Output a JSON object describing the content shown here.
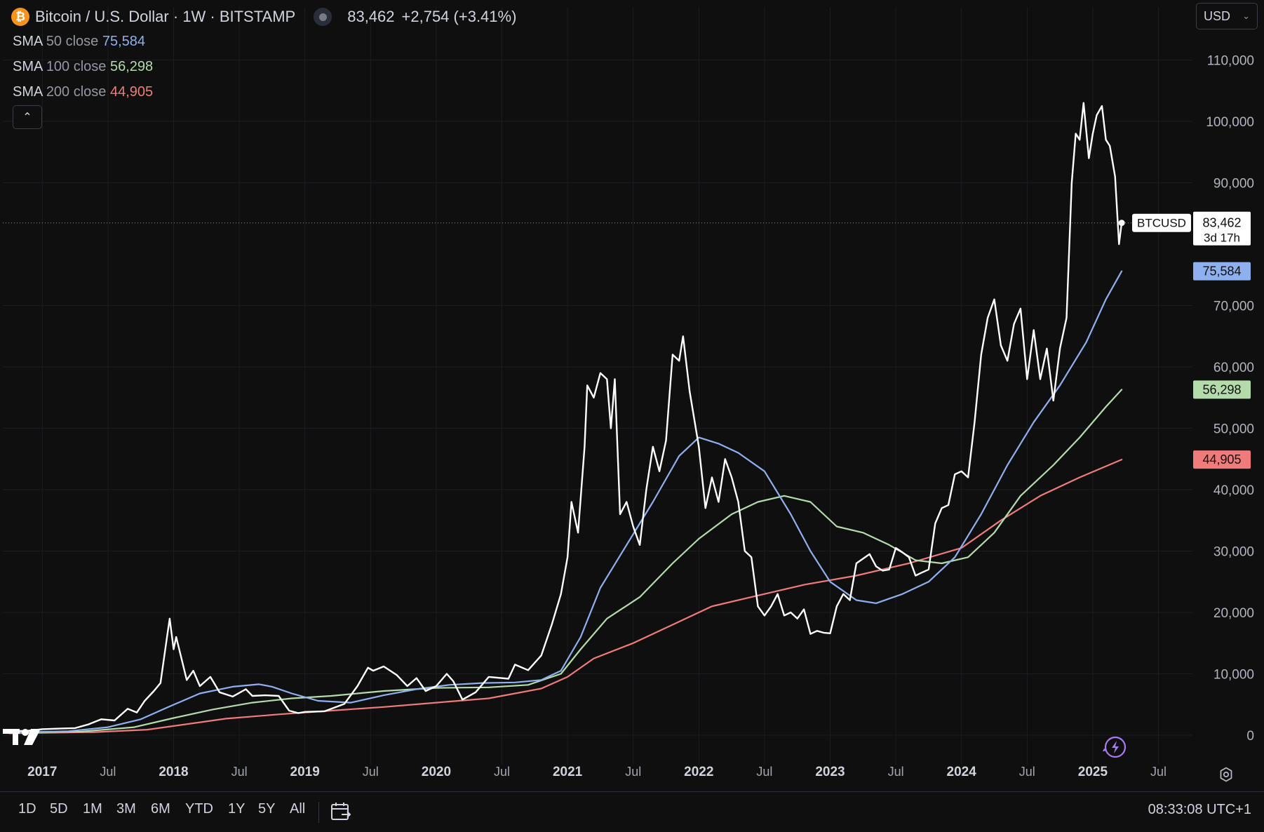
{
  "header": {
    "icon_glyph": "₿",
    "title": "Bitcoin / U.S. Dollar · 1W · BITSTAMP",
    "price": "83,462",
    "change": "+2,754 (+3.41%)"
  },
  "legend": [
    {
      "name": "SMA",
      "params": "50 close",
      "value": "75,584",
      "color": "#8fb0ee"
    },
    {
      "name": "SMA",
      "params": "100 close",
      "value": "56,298",
      "color": "#b4dcab"
    },
    {
      "name": "SMA",
      "params": "200 close",
      "value": "44,905",
      "color": "#f07b7b"
    }
  ],
  "collapse_glyph": "⌃",
  "currency": {
    "value": "USD",
    "chevron": "⌄"
  },
  "price_label": {
    "symbol": "BTCUSD",
    "price": "83,462",
    "countdown": "3d 17h"
  },
  "bottom": {
    "ranges": [
      "1D",
      "5D",
      "1M",
      "3M",
      "6M",
      "YTD",
      "1Y",
      "5Y",
      "All"
    ],
    "clock": "08:33:08 UTC+1"
  },
  "icons": [
    "bitcoin-icon",
    "status-dot-icon",
    "chevron-up-icon",
    "chevron-down-icon",
    "calendar-icon",
    "settings-icon",
    "tradingview-logo-icon",
    "lightning-icon"
  ],
  "chart_data": {
    "type": "line",
    "symbol": "BTCUSD",
    "interval": "1W",
    "exchange": "BITSTAMP",
    "x_axis": {
      "ticks": [
        {
          "label": "2017",
          "x": 2017.0,
          "bold": true
        },
        {
          "label": "Jul",
          "x": 2017.5
        },
        {
          "label": "2018",
          "x": 2018.0,
          "bold": true
        },
        {
          "label": "Jul",
          "x": 2018.5
        },
        {
          "label": "2019",
          "x": 2019.0,
          "bold": true
        },
        {
          "label": "Jul",
          "x": 2019.5
        },
        {
          "label": "2020",
          "x": 2020.0,
          "bold": true
        },
        {
          "label": "Jul",
          "x": 2020.5
        },
        {
          "label": "2021",
          "x": 2021.0,
          "bold": true
        },
        {
          "label": "Jul",
          "x": 2021.5
        },
        {
          "label": "2022",
          "x": 2022.0,
          "bold": true
        },
        {
          "label": "Jul",
          "x": 2022.5
        },
        {
          "label": "2023",
          "x": 2023.0,
          "bold": true
        },
        {
          "label": "Jul",
          "x": 2023.5
        },
        {
          "label": "2024",
          "x": 2024.0,
          "bold": true
        },
        {
          "label": "Jul",
          "x": 2024.5
        },
        {
          "label": "2025",
          "x": 2025.0,
          "bold": true
        },
        {
          "label": "Jul",
          "x": 2025.5
        }
      ],
      "range": [
        2016.7,
        2025.7
      ]
    },
    "y_axis": {
      "ticks": [
        {
          "label": "0",
          "v": 0
        },
        {
          "label": "10,000",
          "v": 10000
        },
        {
          "label": "20,000",
          "v": 20000
        },
        {
          "label": "30,000",
          "v": 30000
        },
        {
          "label": "40,000",
          "v": 40000
        },
        {
          "label": "50,000",
          "v": 50000
        },
        {
          "label": "60,000",
          "v": 60000
        },
        {
          "label": "70,000",
          "v": 70000
        },
        {
          "label": "90,000",
          "v": 90000
        },
        {
          "label": "100,000",
          "v": 100000
        },
        {
          "label": "110,000",
          "v": 110000
        }
      ],
      "range": [
        0,
        110000
      ]
    },
    "grid": true,
    "last_price": 83462,
    "series": [
      {
        "name": "BTCUSD",
        "color": "#ffffff",
        "points": [
          [
            2016.75,
            620
          ],
          [
            2016.9,
            740
          ],
          [
            2017.0,
            980
          ],
          [
            2017.15,
            1100
          ],
          [
            2017.25,
            1150
          ],
          [
            2017.35,
            1750
          ],
          [
            2017.45,
            2600
          ],
          [
            2017.55,
            2400
          ],
          [
            2017.65,
            4300
          ],
          [
            2017.72,
            3700
          ],
          [
            2017.78,
            5600
          ],
          [
            2017.85,
            7200
          ],
          [
            2017.9,
            8500
          ],
          [
            2017.95,
            16000
          ],
          [
            2017.97,
            19000
          ],
          [
            2018.0,
            14000
          ],
          [
            2018.02,
            16000
          ],
          [
            2018.1,
            9000
          ],
          [
            2018.15,
            10500
          ],
          [
            2018.2,
            8000
          ],
          [
            2018.28,
            9500
          ],
          [
            2018.35,
            7000
          ],
          [
            2018.45,
            6300
          ],
          [
            2018.55,
            7500
          ],
          [
            2018.6,
            6400
          ],
          [
            2018.7,
            6500
          ],
          [
            2018.8,
            6400
          ],
          [
            2018.88,
            4000
          ],
          [
            2018.95,
            3600
          ],
          [
            2019.0,
            3800
          ],
          [
            2019.15,
            3900
          ],
          [
            2019.3,
            5100
          ],
          [
            2019.4,
            8000
          ],
          [
            2019.48,
            11000
          ],
          [
            2019.52,
            10500
          ],
          [
            2019.6,
            11200
          ],
          [
            2019.7,
            9800
          ],
          [
            2019.78,
            8000
          ],
          [
            2019.85,
            9300
          ],
          [
            2019.92,
            7200
          ],
          [
            2020.0,
            8000
          ],
          [
            2020.08,
            10000
          ],
          [
            2020.13,
            8800
          ],
          [
            2020.2,
            5800
          ],
          [
            2020.3,
            7000
          ],
          [
            2020.4,
            9500
          ],
          [
            2020.55,
            9200
          ],
          [
            2020.6,
            11500
          ],
          [
            2020.7,
            10600
          ],
          [
            2020.8,
            13000
          ],
          [
            2020.88,
            18000
          ],
          [
            2020.95,
            23000
          ],
          [
            2021.0,
            29000
          ],
          [
            2021.03,
            38000
          ],
          [
            2021.08,
            33000
          ],
          [
            2021.13,
            47000
          ],
          [
            2021.15,
            57000
          ],
          [
            2021.2,
            55000
          ],
          [
            2021.25,
            59000
          ],
          [
            2021.3,
            58000
          ],
          [
            2021.33,
            50000
          ],
          [
            2021.36,
            58000
          ],
          [
            2021.4,
            36000
          ],
          [
            2021.45,
            38000
          ],
          [
            2021.5,
            34000
          ],
          [
            2021.55,
            31000
          ],
          [
            2021.6,
            40000
          ],
          [
            2021.65,
            47000
          ],
          [
            2021.7,
            43000
          ],
          [
            2021.75,
            48000
          ],
          [
            2021.8,
            62000
          ],
          [
            2021.85,
            61000
          ],
          [
            2021.88,
            65000
          ],
          [
            2021.93,
            56000
          ],
          [
            2022.0,
            47000
          ],
          [
            2022.05,
            37000
          ],
          [
            2022.1,
            42000
          ],
          [
            2022.15,
            38000
          ],
          [
            2022.2,
            45000
          ],
          [
            2022.25,
            42000
          ],
          [
            2022.3,
            38000
          ],
          [
            2022.35,
            30000
          ],
          [
            2022.4,
            29000
          ],
          [
            2022.45,
            21000
          ],
          [
            2022.5,
            19500
          ],
          [
            2022.55,
            21000
          ],
          [
            2022.6,
            23000
          ],
          [
            2022.65,
            19500
          ],
          [
            2022.7,
            20000
          ],
          [
            2022.75,
            19000
          ],
          [
            2022.8,
            20500
          ],
          [
            2022.85,
            16500
          ],
          [
            2022.9,
            17000
          ],
          [
            2022.95,
            16700
          ],
          [
            2023.0,
            16600
          ],
          [
            2023.05,
            21000
          ],
          [
            2023.1,
            23000
          ],
          [
            2023.15,
            22000
          ],
          [
            2023.2,
            28000
          ],
          [
            2023.3,
            29500
          ],
          [
            2023.35,
            27500
          ],
          [
            2023.4,
            26800
          ],
          [
            2023.45,
            27000
          ],
          [
            2023.5,
            30500
          ],
          [
            2023.55,
            29800
          ],
          [
            2023.6,
            29000
          ],
          [
            2023.65,
            26000
          ],
          [
            2023.7,
            26500
          ],
          [
            2023.75,
            27000
          ],
          [
            2023.8,
            34500
          ],
          [
            2023.85,
            37000
          ],
          [
            2023.9,
            37500
          ],
          [
            2023.95,
            42500
          ],
          [
            2024.0,
            43000
          ],
          [
            2024.05,
            42000
          ],
          [
            2024.1,
            51000
          ],
          [
            2024.15,
            62000
          ],
          [
            2024.2,
            68000
          ],
          [
            2024.25,
            71000
          ],
          [
            2024.3,
            63500
          ],
          [
            2024.35,
            61000
          ],
          [
            2024.4,
            67000
          ],
          [
            2024.45,
            69500
          ],
          [
            2024.5,
            58000
          ],
          [
            2024.55,
            66000
          ],
          [
            2024.6,
            58000
          ],
          [
            2024.65,
            63000
          ],
          [
            2024.7,
            54500
          ],
          [
            2024.75,
            63000
          ],
          [
            2024.8,
            68000
          ],
          [
            2024.84,
            90000
          ],
          [
            2024.87,
            98000
          ],
          [
            2024.9,
            97000
          ],
          [
            2024.93,
            103000
          ],
          [
            2024.97,
            94000
          ],
          [
            2025.0,
            98000
          ],
          [
            2025.03,
            101000
          ],
          [
            2025.07,
            102500
          ],
          [
            2025.1,
            97000
          ],
          [
            2025.13,
            96000
          ],
          [
            2025.17,
            91000
          ],
          [
            2025.2,
            80000
          ],
          [
            2025.22,
            83462
          ]
        ]
      },
      {
        "name": "SMA 50",
        "color": "#8fb0ee",
        "points": [
          [
            2016.75,
            450
          ],
          [
            2017.2,
            650
          ],
          [
            2017.5,
            1300
          ],
          [
            2017.75,
            2600
          ],
          [
            2017.95,
            4500
          ],
          [
            2018.2,
            6800
          ],
          [
            2018.45,
            7900
          ],
          [
            2018.65,
            8300
          ],
          [
            2018.75,
            7900
          ],
          [
            2018.9,
            6800
          ],
          [
            2019.1,
            5600
          ],
          [
            2019.35,
            5300
          ],
          [
            2019.6,
            6500
          ],
          [
            2019.85,
            7500
          ],
          [
            2020.1,
            8200
          ],
          [
            2020.35,
            8500
          ],
          [
            2020.6,
            8600
          ],
          [
            2020.8,
            9000
          ],
          [
            2020.95,
            10500
          ],
          [
            2021.1,
            16000
          ],
          [
            2021.25,
            24000
          ],
          [
            2021.45,
            31000
          ],
          [
            2021.65,
            38000
          ],
          [
            2021.85,
            45500
          ],
          [
            2022.0,
            48500
          ],
          [
            2022.15,
            47500
          ],
          [
            2022.3,
            46000
          ],
          [
            2022.5,
            43000
          ],
          [
            2022.7,
            36000
          ],
          [
            2022.85,
            30000
          ],
          [
            2023.0,
            25000
          ],
          [
            2023.2,
            22000
          ],
          [
            2023.35,
            21500
          ],
          [
            2023.55,
            23000
          ],
          [
            2023.75,
            25000
          ],
          [
            2023.95,
            29000
          ],
          [
            2024.15,
            36000
          ],
          [
            2024.35,
            44000
          ],
          [
            2024.55,
            51000
          ],
          [
            2024.75,
            57000
          ],
          [
            2024.95,
            64000
          ],
          [
            2025.1,
            71000
          ],
          [
            2025.22,
            75584
          ]
        ]
      },
      {
        "name": "SMA 100",
        "color": "#b4dcab",
        "points": [
          [
            2016.75,
            400
          ],
          [
            2017.3,
            600
          ],
          [
            2017.7,
            1300
          ],
          [
            2018.0,
            2800
          ],
          [
            2018.3,
            4200
          ],
          [
            2018.6,
            5300
          ],
          [
            2018.9,
            6000
          ],
          [
            2019.2,
            6400
          ],
          [
            2019.6,
            7200
          ],
          [
            2020.0,
            7700
          ],
          [
            2020.4,
            7800
          ],
          [
            2020.7,
            8200
          ],
          [
            2020.95,
            10000
          ],
          [
            2021.1,
            14000
          ],
          [
            2021.3,
            19000
          ],
          [
            2021.55,
            22500
          ],
          [
            2021.8,
            28000
          ],
          [
            2022.0,
            32000
          ],
          [
            2022.25,
            36000
          ],
          [
            2022.45,
            38000
          ],
          [
            2022.65,
            39000
          ],
          [
            2022.85,
            38000
          ],
          [
            2023.05,
            34000
          ],
          [
            2023.25,
            33000
          ],
          [
            2023.45,
            31000
          ],
          [
            2023.65,
            28500
          ],
          [
            2023.85,
            28000
          ],
          [
            2024.05,
            29000
          ],
          [
            2024.25,
            33000
          ],
          [
            2024.45,
            39000
          ],
          [
            2024.7,
            44000
          ],
          [
            2024.9,
            48500
          ],
          [
            2025.1,
            53500
          ],
          [
            2025.22,
            56298
          ]
        ]
      },
      {
        "name": "SMA 200",
        "color": "#f07b7b",
        "points": [
          [
            2016.75,
            300
          ],
          [
            2017.4,
            500
          ],
          [
            2017.8,
            900
          ],
          [
            2018.0,
            1500
          ],
          [
            2018.4,
            2700
          ],
          [
            2018.8,
            3400
          ],
          [
            2019.2,
            4000
          ],
          [
            2019.6,
            4600
          ],
          [
            2020.0,
            5300
          ],
          [
            2020.4,
            6000
          ],
          [
            2020.8,
            7600
          ],
          [
            2021.0,
            9500
          ],
          [
            2021.2,
            12500
          ],
          [
            2021.5,
            15000
          ],
          [
            2021.8,
            18000
          ],
          [
            2022.1,
            21000
          ],
          [
            2022.4,
            22500
          ],
          [
            2022.8,
            24500
          ],
          [
            2023.2,
            26000
          ],
          [
            2023.6,
            28000
          ],
          [
            2024.0,
            30500
          ],
          [
            2024.3,
            35000
          ],
          [
            2024.6,
            39000
          ],
          [
            2024.9,
            42000
          ],
          [
            2025.22,
            44905
          ]
        ]
      }
    ]
  }
}
